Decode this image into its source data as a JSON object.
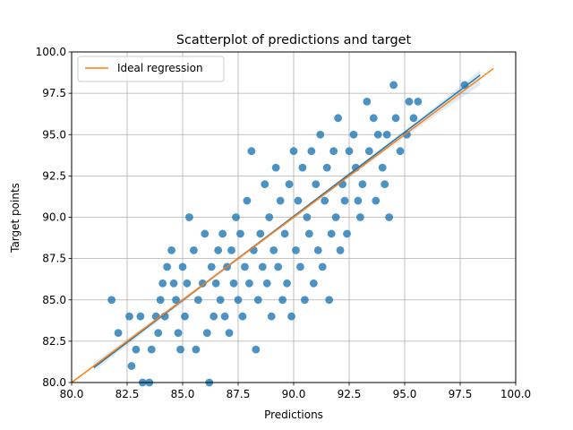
{
  "chart_data": {
    "type": "scatter",
    "title": "Scatterplot of predictions and target",
    "xlabel": "Predictions",
    "ylabel": "Target points",
    "xlim": [
      80.0,
      100.0
    ],
    "ylim": [
      80.0,
      100.0
    ],
    "xticks": [
      "80.0",
      "82.5",
      "85.0",
      "87.5",
      "90.0",
      "92.5",
      "95.0",
      "97.5",
      "100.0"
    ],
    "yticks": [
      "80.0",
      "82.5",
      "85.0",
      "87.5",
      "90.0",
      "92.5",
      "95.0",
      "97.5",
      "100.0"
    ],
    "grid": true,
    "legend": {
      "position": "top-left",
      "entries": [
        "Ideal regression"
      ]
    },
    "colors": {
      "points": "#1f77b4",
      "regression": "#1f77b4",
      "ideal": "#ff7f0e",
      "grid": "#b0b0b0"
    },
    "series": [
      {
        "kind": "scatter",
        "points": [
          [
            81.8,
            85
          ],
          [
            82.1,
            83
          ],
          [
            82.6,
            84
          ],
          [
            82.7,
            81
          ],
          [
            82.9,
            82
          ],
          [
            83.1,
            84
          ],
          [
            83.2,
            80
          ],
          [
            83.5,
            80
          ],
          [
            83.6,
            82
          ],
          [
            83.8,
            84
          ],
          [
            83.9,
            83
          ],
          [
            84.0,
            85
          ],
          [
            84.1,
            86
          ],
          [
            84.2,
            84
          ],
          [
            84.3,
            87
          ],
          [
            84.5,
            88
          ],
          [
            84.6,
            86
          ],
          [
            84.8,
            83
          ],
          [
            84.9,
            82
          ],
          [
            84.7,
            85
          ],
          [
            85.0,
            87
          ],
          [
            85.1,
            84
          ],
          [
            85.2,
            86
          ],
          [
            85.3,
            90
          ],
          [
            85.5,
            88
          ],
          [
            85.6,
            82
          ],
          [
            85.7,
            85
          ],
          [
            85.9,
            86
          ],
          [
            86.0,
            89
          ],
          [
            86.1,
            83
          ],
          [
            86.2,
            80
          ],
          [
            86.3,
            87
          ],
          [
            86.4,
            84
          ],
          [
            86.5,
            86
          ],
          [
            86.6,
            88
          ],
          [
            86.7,
            85
          ],
          [
            86.8,
            89
          ],
          [
            86.9,
            84
          ],
          [
            87.0,
            87
          ],
          [
            87.1,
            83
          ],
          [
            87.2,
            88
          ],
          [
            87.3,
            86
          ],
          [
            87.4,
            90
          ],
          [
            87.5,
            85
          ],
          [
            87.6,
            89
          ],
          [
            87.7,
            84
          ],
          [
            87.8,
            87
          ],
          [
            87.9,
            91
          ],
          [
            88.0,
            86
          ],
          [
            88.1,
            94
          ],
          [
            88.2,
            88
          ],
          [
            88.3,
            82
          ],
          [
            88.4,
            85
          ],
          [
            88.5,
            89
          ],
          [
            88.6,
            87
          ],
          [
            88.7,
            92
          ],
          [
            88.8,
            86
          ],
          [
            88.9,
            90
          ],
          [
            89.0,
            84
          ],
          [
            89.1,
            88
          ],
          [
            89.2,
            93
          ],
          [
            89.3,
            87
          ],
          [
            89.4,
            91
          ],
          [
            89.5,
            85
          ],
          [
            89.6,
            89
          ],
          [
            89.7,
            86
          ],
          [
            89.8,
            92
          ],
          [
            89.9,
            84
          ],
          [
            90.0,
            94
          ],
          [
            90.1,
            88
          ],
          [
            90.2,
            91
          ],
          [
            90.3,
            87
          ],
          [
            90.4,
            93
          ],
          [
            90.5,
            85
          ],
          [
            90.6,
            90
          ],
          [
            90.7,
            89
          ],
          [
            90.8,
            94
          ],
          [
            90.9,
            86
          ],
          [
            91.0,
            92
          ],
          [
            91.1,
            88
          ],
          [
            91.2,
            95
          ],
          [
            91.3,
            87
          ],
          [
            91.4,
            91
          ],
          [
            91.5,
            93
          ],
          [
            91.6,
            85
          ],
          [
            91.7,
            89
          ],
          [
            91.8,
            94
          ],
          [
            91.9,
            90
          ],
          [
            92.0,
            96
          ],
          [
            92.1,
            88
          ],
          [
            92.2,
            92
          ],
          [
            92.3,
            91
          ],
          [
            92.4,
            89
          ],
          [
            92.5,
            94
          ],
          [
            92.7,
            95
          ],
          [
            92.8,
            93
          ],
          [
            92.9,
            91
          ],
          [
            93.0,
            90
          ],
          [
            93.1,
            92
          ],
          [
            93.3,
            97
          ],
          [
            93.4,
            94
          ],
          [
            93.6,
            96
          ],
          [
            93.7,
            91
          ],
          [
            93.8,
            95
          ],
          [
            94.0,
            93
          ],
          [
            94.1,
            92
          ],
          [
            94.2,
            95
          ],
          [
            94.3,
            90
          ],
          [
            94.5,
            98
          ],
          [
            94.6,
            96
          ],
          [
            94.8,
            94
          ],
          [
            95.1,
            95
          ],
          [
            95.2,
            97
          ],
          [
            95.4,
            96
          ],
          [
            95.6,
            97
          ],
          [
            97.7,
            98
          ]
        ]
      },
      {
        "kind": "fit-line",
        "name": "",
        "start": [
          81.0,
          80.9
        ],
        "end": [
          98.4,
          98.6
        ],
        "ci_band": [
          [
            81.0,
            80.7,
            81.2
          ],
          [
            84.0,
            83.8,
            84.1
          ],
          [
            87.0,
            86.9,
            87.1
          ],
          [
            90.0,
            89.9,
            90.1
          ],
          [
            93.0,
            92.9,
            93.2
          ],
          [
            96.0,
            95.8,
            96.3
          ],
          [
            98.4,
            98.0,
            98.9
          ]
        ]
      },
      {
        "kind": "ideal-line",
        "name": "Ideal regression",
        "start": [
          80.0,
          80.0
        ],
        "end": [
          99.0,
          99.0
        ]
      }
    ]
  }
}
